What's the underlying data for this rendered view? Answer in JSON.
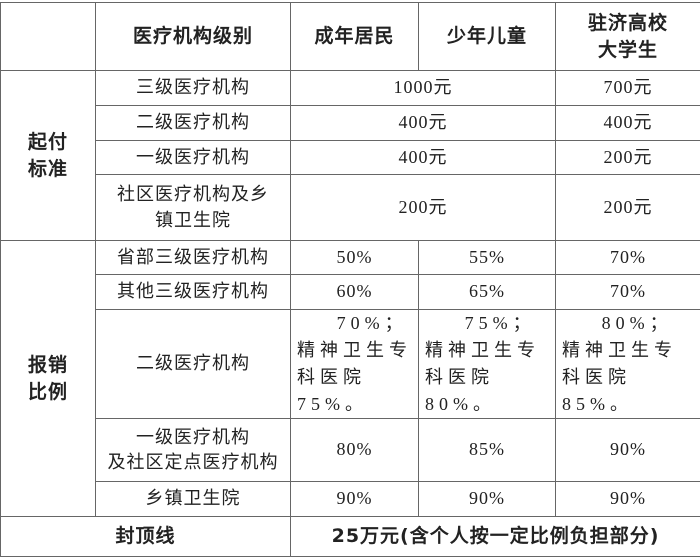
{
  "table": {
    "header": [
      [
        "医疗机构级别"
      ],
      [
        "成年居民"
      ],
      [
        "少年儿童"
      ],
      [
        "驻济高校",
        "大学生"
      ]
    ],
    "sections": [
      {
        "label": [
          "起付",
          "标准"
        ],
        "rows": [
          {
            "level": [
              "三级医疗机构"
            ],
            "cells": [
              "1000元",
              "700元"
            ]
          },
          {
            "level": [
              "二级医疗机构"
            ],
            "cells": [
              "400元",
              "400元"
            ]
          },
          {
            "level": [
              "一级医疗机构"
            ],
            "cells": [
              "400元",
              "200元"
            ]
          },
          {
            "level": [
              "社区医疗机构及乡",
              "镇卫生院"
            ],
            "cells": [
              "200元",
              "200元"
            ]
          }
        ]
      },
      {
        "label": [
          "报销",
          "比例"
        ],
        "rows": [
          {
            "level": [
              "省部三级医疗机构"
            ],
            "cells": [
              "50%",
              "55%",
              "70%"
            ]
          },
          {
            "level": [
              "其他三级医疗机构"
            ],
            "cells": [
              "60%",
              "65%",
              "70%"
            ]
          },
          {
            "level": [
              "二级医疗机构"
            ],
            "cells": [
              "70%；精神卫生专科医院75%。",
              "75%；精神卫生专科医院80%。",
              "80%；精神卫生专科医院85%。"
            ]
          },
          {
            "level": [
              "一级医疗机构",
              "及社区定点医疗机构"
            ],
            "cells": [
              "80%",
              "85%",
              "90%"
            ]
          },
          {
            "level": [
              "乡镇卫生院"
            ],
            "cells": [
              "90%",
              "90%",
              "90%"
            ]
          }
        ]
      }
    ],
    "footer": [
      "封顶线",
      "25万元(含个人按一定比例负担部分)"
    ]
  }
}
